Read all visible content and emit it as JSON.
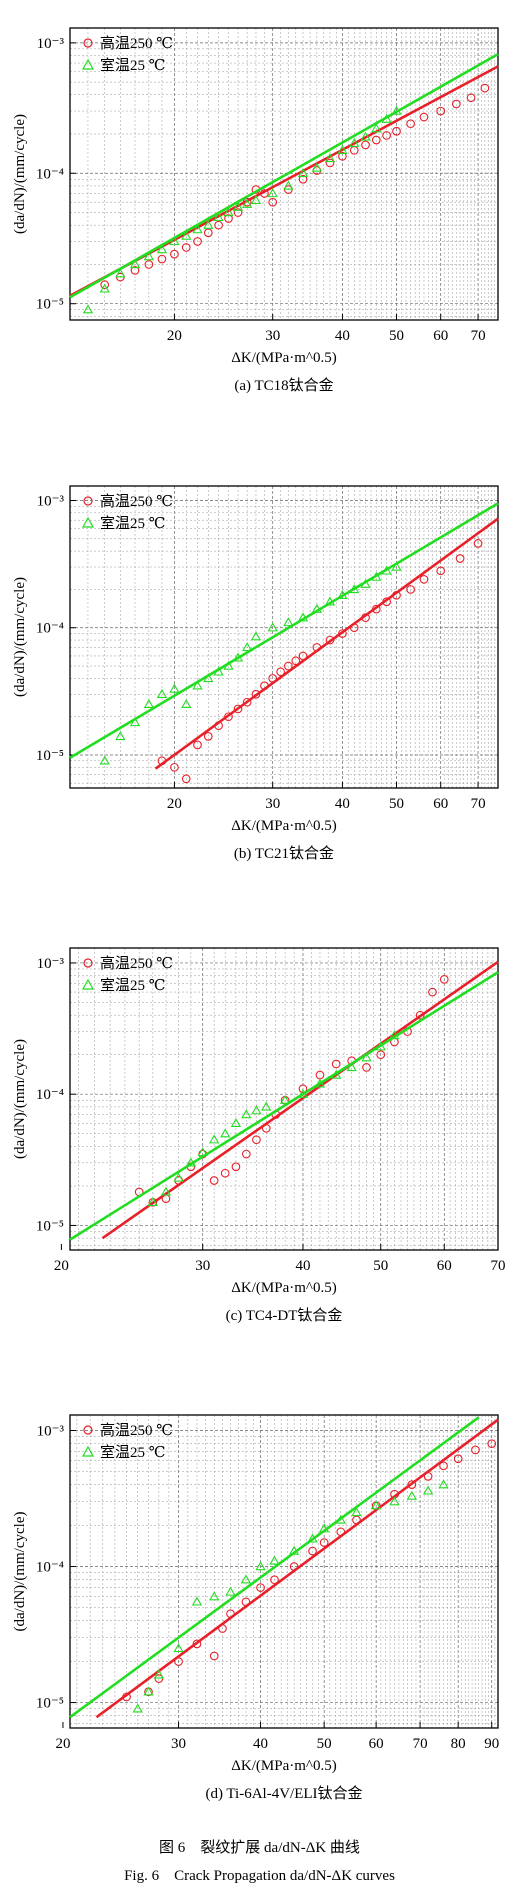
{
  "figure": {
    "caption_cn": "图 6　裂纹扩展 da/dN-ΔK 曲线",
    "caption_en": "Fig. 6　Crack Propagation da/dN-ΔK curves"
  },
  "style": {
    "series_colors": [
      "#e8202a",
      "#22dd22"
    ]
  },
  "chart_data": [
    {
      "type": "scatter",
      "caption": "(a) TC18钛合金",
      "xlabel": "ΔK/(MPa·m^0.5)",
      "ylabel": "(da/dN)/(mm/cycle)",
      "xscale": "log",
      "yscale": "log",
      "xlim": [
        13,
        76
      ],
      "ylim": [
        7.5e-06,
        0.0013
      ],
      "xticks": [
        20,
        30,
        40,
        50,
        60,
        70
      ],
      "yticks": [
        1e-05,
        0.0001,
        0.001
      ],
      "yticklabels": [
        "10⁻⁵",
        "10⁻⁴",
        "10⁻³"
      ],
      "legend_position": "top-left",
      "series": [
        {
          "name": "高温250 ℃",
          "marker": "circle",
          "points": [
            [
              15,
              1.4e-05
            ],
            [
              16,
              1.6e-05
            ],
            [
              17,
              1.8e-05
            ],
            [
              18,
              2e-05
            ],
            [
              19,
              2.2e-05
            ],
            [
              20,
              2.4e-05
            ],
            [
              21,
              2.7e-05
            ],
            [
              22,
              3e-05
            ],
            [
              23,
              3.5e-05
            ],
            [
              24,
              4e-05
            ],
            [
              25,
              4.5e-05
            ],
            [
              26,
              5e-05
            ],
            [
              27,
              6e-05
            ],
            [
              28,
              7.5e-05
            ],
            [
              29,
              7e-05
            ],
            [
              30,
              6e-05
            ],
            [
              32,
              7.5e-05
            ],
            [
              34,
              9e-05
            ],
            [
              36,
              0.000105
            ],
            [
              38,
              0.00012
            ],
            [
              40,
              0.000135
            ],
            [
              42,
              0.00015
            ],
            [
              44,
              0.000165
            ],
            [
              46,
              0.00018
            ],
            [
              48,
              0.000195
            ],
            [
              50,
              0.00021
            ],
            [
              53,
              0.00024
            ],
            [
              56,
              0.00027
            ],
            [
              60,
              0.0003
            ],
            [
              64,
              0.00034
            ],
            [
              68,
              0.00038
            ],
            [
              72,
              0.00045
            ]
          ],
          "fit": [
            [
              13,
              1.15e-05
            ],
            [
              76,
              0.00066
            ]
          ]
        },
        {
          "name": "室温25 ℃",
          "marker": "triangle",
          "points": [
            [
              14,
              9e-06
            ],
            [
              15,
              1.3e-05
            ],
            [
              16,
              1.7e-05
            ],
            [
              17,
              2e-05
            ],
            [
              18,
              2.3e-05
            ],
            [
              19,
              2.6e-05
            ],
            [
              20,
              3e-05
            ],
            [
              21,
              3.3e-05
            ],
            [
              22,
              3.7e-05
            ],
            [
              23,
              4e-05
            ],
            [
              24,
              4.6e-05
            ],
            [
              25,
              5e-05
            ],
            [
              26,
              5.5e-05
            ],
            [
              27,
              5.8e-05
            ],
            [
              28,
              6.2e-05
            ],
            [
              30,
              7e-05
            ],
            [
              32,
              8e-05
            ],
            [
              34,
              0.0001
            ],
            [
              36,
              0.00011
            ],
            [
              38,
              0.00013
            ],
            [
              40,
              0.00015
            ],
            [
              42,
              0.00017
            ],
            [
              44,
              0.00019
            ],
            [
              46,
              0.00022
            ],
            [
              48,
              0.00026
            ],
            [
              50,
              0.0003
            ]
          ],
          "fit": [
            [
              13,
              1.12e-05
            ],
            [
              76,
              0.00082
            ]
          ]
        }
      ]
    },
    {
      "type": "scatter",
      "caption": "(b) TC21钛合金",
      "xlabel": "ΔK/(MPa·m^0.5)",
      "ylabel": "(da/dN)/(mm/cycle)",
      "xscale": "log",
      "yscale": "log",
      "xlim": [
        13,
        76
      ],
      "ylim": [
        5.5e-06,
        0.0013
      ],
      "xticks": [
        20,
        30,
        40,
        50,
        60,
        70
      ],
      "yticks": [
        1e-05,
        0.0001,
        0.001
      ],
      "yticklabels": [
        "10⁻⁵",
        "10⁻⁴",
        "10⁻³"
      ],
      "legend_position": "top-left",
      "series": [
        {
          "name": "高温250 ℃",
          "marker": "circle",
          "points": [
            [
              19,
              9e-06
            ],
            [
              20,
              8e-06
            ],
            [
              21,
              6.5e-06
            ],
            [
              22,
              1.2e-05
            ],
            [
              23,
              1.4e-05
            ],
            [
              24,
              1.7e-05
            ],
            [
              25,
              2e-05
            ],
            [
              26,
              2.3e-05
            ],
            [
              27,
              2.6e-05
            ],
            [
              28,
              3e-05
            ],
            [
              29,
              3.5e-05
            ],
            [
              30,
              4e-05
            ],
            [
              31,
              4.5e-05
            ],
            [
              32,
              5e-05
            ],
            [
              33,
              5.5e-05
            ],
            [
              34,
              6e-05
            ],
            [
              36,
              7e-05
            ],
            [
              38,
              8e-05
            ],
            [
              40,
              9e-05
            ],
            [
              42,
              0.0001
            ],
            [
              44,
              0.00012
            ],
            [
              46,
              0.00014
            ],
            [
              48,
              0.00016
            ],
            [
              50,
              0.00018
            ],
            [
              53,
              0.0002
            ],
            [
              56,
              0.00024
            ],
            [
              60,
              0.00028
            ],
            [
              65,
              0.00035
            ],
            [
              70,
              0.00046
            ]
          ],
          "fit": [
            [
              18.5,
              7.8e-06
            ],
            [
              76,
              0.00072
            ]
          ]
        },
        {
          "name": "室温25 ℃",
          "marker": "triangle",
          "points": [
            [
              15,
              9e-06
            ],
            [
              16,
              1.4e-05
            ],
            [
              17,
              1.8e-05
            ],
            [
              18,
              2.5e-05
            ],
            [
              19,
              3e-05
            ],
            [
              20,
              3.3e-05
            ],
            [
              21,
              2.5e-05
            ],
            [
              22,
              3.5e-05
            ],
            [
              23,
              4e-05
            ],
            [
              24,
              4.5e-05
            ],
            [
              25,
              5e-05
            ],
            [
              26,
              5.8e-05
            ],
            [
              27,
              7e-05
            ],
            [
              28,
              8.5e-05
            ],
            [
              30,
              0.0001
            ],
            [
              32,
              0.00011
            ],
            [
              34,
              0.00012
            ],
            [
              36,
              0.00014
            ],
            [
              38,
              0.00016
            ],
            [
              40,
              0.00018
            ],
            [
              42,
              0.0002
            ],
            [
              44,
              0.00022
            ],
            [
              46,
              0.00025
            ],
            [
              48,
              0.00028
            ],
            [
              50,
              0.0003
            ]
          ],
          "fit": [
            [
              13,
              9.5e-06
            ],
            [
              76,
              0.00095
            ]
          ]
        }
      ]
    },
    {
      "type": "scatter",
      "caption": "(c) TC4-DT钛合金",
      "xlabel": "ΔK/(MPa·m^0.5)",
      "ylabel": "(da/dN)/(mm/cycle)",
      "xscale": "log",
      "yscale": "log",
      "xlim": [
        20.5,
        70
      ],
      "ylim": [
        6.5e-06,
        0.0013
      ],
      "xticks": [
        20,
        30,
        40,
        50,
        60,
        70
      ],
      "yticks": [
        1e-05,
        0.0001,
        0.001
      ],
      "yticklabels": [
        "10⁻⁵",
        "10⁻⁴",
        "10⁻³"
      ],
      "legend_position": "top-left",
      "series": [
        {
          "name": "高温250 ℃",
          "marker": "circle",
          "points": [
            [
              25,
              1.8e-05
            ],
            [
              26,
              1.5e-05
            ],
            [
              27,
              1.6e-05
            ],
            [
              28,
              2.2e-05
            ],
            [
              29,
              2.8e-05
            ],
            [
              30,
              3.5e-05
            ],
            [
              31,
              2.2e-05
            ],
            [
              32,
              2.5e-05
            ],
            [
              33,
              2.8e-05
            ],
            [
              34,
              3.5e-05
            ],
            [
              35,
              4.5e-05
            ],
            [
              36,
              5.5e-05
            ],
            [
              37,
              7e-05
            ],
            [
              38,
              9e-05
            ],
            [
              40,
              0.00011
            ],
            [
              42,
              0.00014
            ],
            [
              44,
              0.00017
            ],
            [
              46,
              0.00018
            ],
            [
              48,
              0.00016
            ],
            [
              50,
              0.0002
            ],
            [
              52,
              0.00025
            ],
            [
              54,
              0.0003
            ],
            [
              56,
              0.0004
            ],
            [
              58,
              0.0006
            ],
            [
              60,
              0.00075
            ]
          ],
          "fit": [
            [
              22.5,
              8e-06
            ],
            [
              70,
              0.00102
            ]
          ]
        },
        {
          "name": "室温25 ℃",
          "marker": "triangle",
          "points": [
            [
              26,
              1.5e-05
            ],
            [
              27,
              1.8e-05
            ],
            [
              28,
              2.3e-05
            ],
            [
              29,
              3e-05
            ],
            [
              30,
              3.6e-05
            ],
            [
              31,
              4.5e-05
            ],
            [
              32,
              5e-05
            ],
            [
              33,
              6e-05
            ],
            [
              34,
              7e-05
            ],
            [
              35,
              7.5e-05
            ],
            [
              36,
              8e-05
            ],
            [
              38,
              9e-05
            ],
            [
              40,
              0.0001
            ],
            [
              42,
              0.00012
            ],
            [
              44,
              0.00014
            ],
            [
              46,
              0.00016
            ],
            [
              48,
              0.00019
            ],
            [
              50,
              0.00023
            ],
            [
              52,
              0.00028
            ]
          ],
          "fit": [
            [
              20.5,
              7.8e-06
            ],
            [
              70,
              0.00085
            ]
          ]
        }
      ]
    },
    {
      "type": "scatter",
      "caption": "(d) Ti-6Al-4V/ELI钛合金",
      "xlabel": "ΔK/(MPa·m^0.5)",
      "ylabel": "(da/dN)/(mm/cycle)",
      "xscale": "log",
      "yscale": "log",
      "xlim": [
        20.5,
        92
      ],
      "ylim": [
        6.5e-06,
        0.0013
      ],
      "xticks": [
        20,
        30,
        40,
        50,
        60,
        70,
        80,
        90
      ],
      "yticks": [
        1e-05,
        0.0001,
        0.001
      ],
      "yticklabels": [
        "10⁻⁵",
        "10⁻⁴",
        "10⁻³"
      ],
      "legend_position": "top-left",
      "series": [
        {
          "name": "高温250 ℃",
          "marker": "circle",
          "points": [
            [
              25,
              1.1e-05
            ],
            [
              27,
              1.2e-05
            ],
            [
              28,
              1.5e-05
            ],
            [
              30,
              2e-05
            ],
            [
              32,
              2.7e-05
            ],
            [
              34,
              2.2e-05
            ],
            [
              35,
              3.5e-05
            ],
            [
              36,
              4.5e-05
            ],
            [
              38,
              5.5e-05
            ],
            [
              40,
              7e-05
            ],
            [
              42,
              8e-05
            ],
            [
              45,
              0.0001
            ],
            [
              48,
              0.00013
            ],
            [
              50,
              0.00015
            ],
            [
              53,
              0.00018
            ],
            [
              56,
              0.00022
            ],
            [
              60,
              0.00028
            ],
            [
              64,
              0.00034
            ],
            [
              68,
              0.0004
            ],
            [
              72,
              0.00046
            ],
            [
              76,
              0.00055
            ],
            [
              80,
              0.00062
            ],
            [
              85,
              0.00072
            ],
            [
              90,
              0.0008
            ]
          ],
          "fit": [
            [
              22.5,
              7.8e-06
            ],
            [
              92,
              0.0012
            ]
          ]
        },
        {
          "name": "室温25 ℃",
          "marker": "triangle",
          "points": [
            [
              26,
              9e-06
            ],
            [
              27,
              1.2e-05
            ],
            [
              28,
              1.6e-05
            ],
            [
              30,
              2.5e-05
            ],
            [
              32,
              5.5e-05
            ],
            [
              34,
              6e-05
            ],
            [
              36,
              6.5e-05
            ],
            [
              38,
              8e-05
            ],
            [
              40,
              0.0001
            ],
            [
              42,
              0.00011
            ],
            [
              45,
              0.00013
            ],
            [
              48,
              0.00016
            ],
            [
              50,
              0.00019
            ],
            [
              53,
              0.00022
            ],
            [
              56,
              0.00025
            ],
            [
              60,
              0.00028
            ],
            [
              64,
              0.0003
            ],
            [
              68,
              0.00033
            ],
            [
              72,
              0.00036
            ],
            [
              76,
              0.0004
            ]
          ],
          "fit": [
            [
              20.5,
              7.8e-06
            ],
            [
              86,
              0.00125
            ]
          ]
        }
      ]
    }
  ]
}
